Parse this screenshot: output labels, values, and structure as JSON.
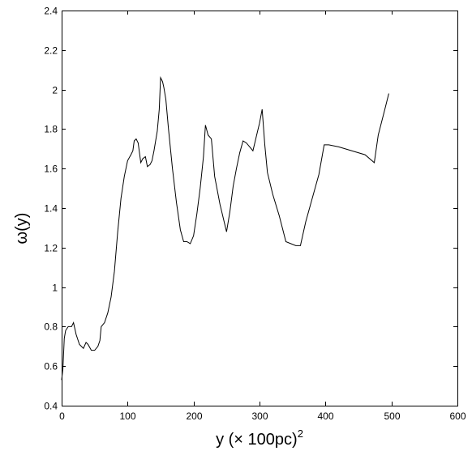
{
  "chart_data": {
    "type": "line",
    "title": "",
    "xlabel": "y (× 100pc)",
    "xlabel_superscript": "2",
    "ylabel": "ω(y)",
    "xlim": [
      0,
      600
    ],
    "ylim": [
      0.4,
      2.4
    ],
    "grid": false,
    "xticks": [
      0,
      100,
      200,
      300,
      400,
      500,
      600
    ],
    "xtick_labels": [
      "0",
      "100",
      "200",
      "300",
      "400",
      "500",
      "600"
    ],
    "yticks": [
      0.4,
      0.6,
      0.8,
      1.0,
      1.2,
      1.4,
      1.6,
      1.8,
      2.0,
      2.2,
      2.4
    ],
    "ytick_labels": [
      "0.4",
      "0.6",
      "0.8",
      "1",
      "1.2",
      "1.4",
      "1.6",
      "1.8",
      "2",
      "2.2",
      "2.4"
    ],
    "series": [
      {
        "x": [
          0,
          2,
          4,
          6,
          10,
          15,
          18,
          22,
          27,
          33,
          37,
          40,
          45,
          50,
          55,
          58,
          60,
          65,
          70,
          75,
          80,
          85,
          90,
          95,
          100,
          105,
          108,
          110,
          113,
          116,
          120,
          123,
          127,
          130,
          134,
          137,
          140,
          145,
          148,
          150,
          153,
          155,
          158,
          162,
          168,
          174,
          180,
          185,
          190,
          195,
          200,
          205,
          210,
          215,
          218,
          222,
          227,
          232,
          240,
          250,
          255,
          260,
          265,
          270,
          275,
          280,
          285,
          290,
          295,
          300,
          304,
          308,
          312,
          320,
          330,
          340,
          355,
          362,
          370,
          380,
          390,
          398,
          405,
          420,
          440,
          460,
          474,
          480,
          490,
          496
        ],
        "y": [
          0.53,
          0.59,
          0.74,
          0.78,
          0.8,
          0.8,
          0.82,
          0.76,
          0.71,
          0.69,
          0.72,
          0.71,
          0.68,
          0.68,
          0.7,
          0.73,
          0.8,
          0.82,
          0.87,
          0.95,
          1.08,
          1.28,
          1.45,
          1.56,
          1.64,
          1.67,
          1.69,
          1.74,
          1.75,
          1.73,
          1.63,
          1.65,
          1.66,
          1.61,
          1.62,
          1.64,
          1.69,
          1.79,
          1.9,
          2.06,
          2.04,
          2.01,
          1.95,
          1.8,
          1.6,
          1.43,
          1.29,
          1.23,
          1.23,
          1.22,
          1.26,
          1.37,
          1.5,
          1.66,
          1.82,
          1.77,
          1.75,
          1.56,
          1.42,
          1.28,
          1.38,
          1.51,
          1.6,
          1.68,
          1.74,
          1.73,
          1.71,
          1.69,
          1.76,
          1.83,
          1.9,
          1.72,
          1.58,
          1.47,
          1.36,
          1.23,
          1.21,
          1.21,
          1.33,
          1.45,
          1.57,
          1.72,
          1.72,
          1.71,
          1.69,
          1.67,
          1.63,
          1.77,
          1.9,
          1.98
        ]
      }
    ]
  }
}
